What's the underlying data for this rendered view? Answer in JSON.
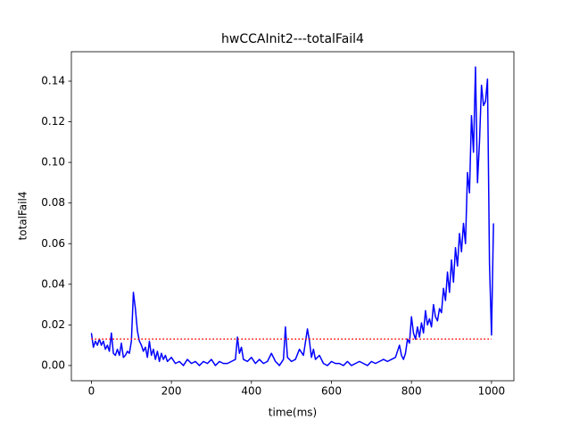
{
  "chart_data": {
    "type": "line",
    "title": "hwCCAInit2---totalFail4",
    "x_label": "time(ms)",
    "y_label": "totalFail4",
    "series": [
      {
        "color": "#0000ff",
        "style": "solid",
        "x": [
          0,
          5,
          10,
          15,
          20,
          25,
          30,
          35,
          40,
          45,
          50,
          55,
          60,
          65,
          70,
          75,
          80,
          85,
          90,
          95,
          100,
          105,
          110,
          115,
          120,
          125,
          130,
          135,
          140,
          145,
          150,
          155,
          160,
          165,
          170,
          175,
          180,
          185,
          190,
          200,
          210,
          220,
          230,
          240,
          250,
          260,
          270,
          280,
          290,
          300,
          310,
          320,
          330,
          340,
          350,
          360,
          365,
          370,
          375,
          380,
          390,
          400,
          410,
          420,
          430,
          440,
          450,
          460,
          470,
          480,
          485,
          490,
          500,
          510,
          520,
          530,
          540,
          545,
          550,
          555,
          560,
          570,
          580,
          590,
          600,
          610,
          620,
          630,
          640,
          650,
          660,
          670,
          680,
          690,
          700,
          710,
          720,
          730,
          740,
          750,
          760,
          770,
          775,
          780,
          785,
          790,
          795,
          800,
          805,
          810,
          815,
          820,
          825,
          830,
          835,
          840,
          845,
          850,
          855,
          860,
          865,
          870,
          875,
          880,
          885,
          890,
          895,
          900,
          905,
          910,
          915,
          920,
          925,
          930,
          935,
          940,
          945,
          950,
          955,
          960,
          965,
          970,
          975,
          980,
          985,
          990,
          995,
          1000,
          1005
        ],
        "values": [
          0.016,
          0.009,
          0.012,
          0.01,
          0.013,
          0.01,
          0.012,
          0.008,
          0.01,
          0.007,
          0.016,
          0.006,
          0.005,
          0.008,
          0.005,
          0.011,
          0.004,
          0.005,
          0.007,
          0.006,
          0.012,
          0.036,
          0.028,
          0.017,
          0.012,
          0.01,
          0.007,
          0.009,
          0.004,
          0.012,
          0.005,
          0.008,
          0.003,
          0.007,
          0.002,
          0.006,
          0.003,
          0.005,
          0.002,
          0.004,
          0.001,
          0.002,
          0.0,
          0.003,
          0.001,
          0.002,
          0.0,
          0.002,
          0.001,
          0.003,
          0.0,
          0.002,
          0.001,
          0.001,
          0.002,
          0.003,
          0.014,
          0.006,
          0.009,
          0.003,
          0.002,
          0.004,
          0.001,
          0.003,
          0.001,
          0.002,
          0.006,
          0.002,
          0.0,
          0.003,
          0.019,
          0.004,
          0.002,
          0.003,
          0.008,
          0.005,
          0.018,
          0.012,
          0.004,
          0.008,
          0.003,
          0.005,
          0.001,
          0.0,
          0.002,
          0.001,
          0.001,
          0.0,
          0.002,
          0.0,
          0.001,
          0.002,
          0.001,
          0.0,
          0.002,
          0.001,
          0.002,
          0.003,
          0.002,
          0.003,
          0.004,
          0.01,
          0.005,
          0.003,
          0.006,
          0.013,
          0.011,
          0.024,
          0.016,
          0.013,
          0.019,
          0.014,
          0.021,
          0.016,
          0.027,
          0.02,
          0.023,
          0.019,
          0.03,
          0.024,
          0.022,
          0.028,
          0.026,
          0.038,
          0.032,
          0.046,
          0.036,
          0.052,
          0.041,
          0.058,
          0.049,
          0.065,
          0.056,
          0.07,
          0.06,
          0.095,
          0.085,
          0.123,
          0.105,
          0.147,
          0.09,
          0.11,
          0.138,
          0.128,
          0.13,
          0.141,
          0.05,
          0.015,
          0.07
        ]
      },
      {
        "color": "#ff0000",
        "style": "dotted",
        "x": [
          0,
          1000
        ],
        "values": [
          0.013,
          0.013
        ]
      }
    ],
    "xlim": [
      -50,
      1056
    ],
    "xticks": [
      0,
      200,
      400,
      600,
      800,
      1000
    ],
    "ylim": [
      -0.0075,
      0.1545
    ],
    "yticks": [
      {
        "value": 0,
        "label": "0.00"
      },
      0.02,
      0.04,
      0.06,
      0.08,
      {
        "value": 0.1,
        "label": "0.10"
      },
      0.12,
      0.14
    ]
  }
}
